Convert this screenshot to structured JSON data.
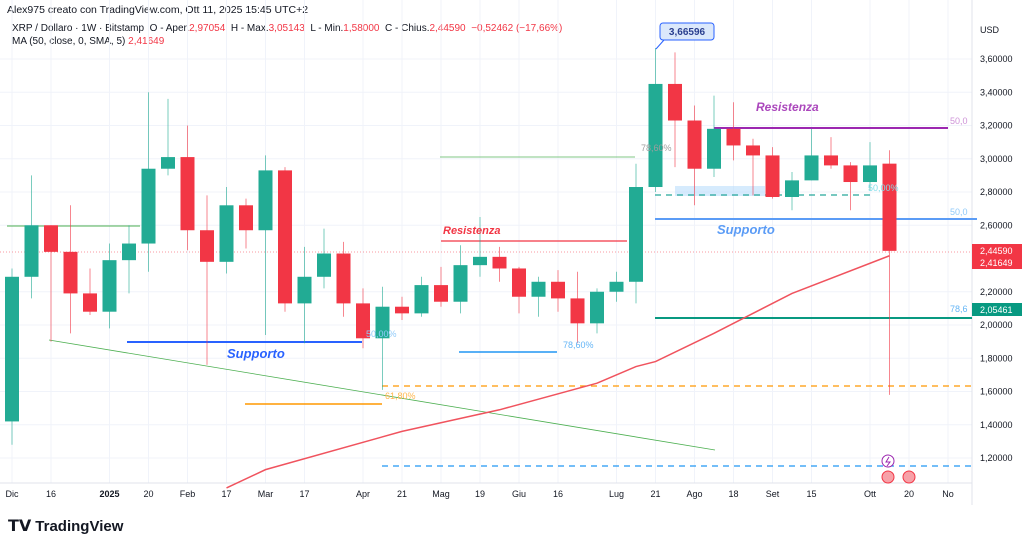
{
  "header": {
    "author": "Alex975 creato con TradingView.com, Ott 11, 2025 15:45 UTC+2",
    "symbol": "XRP / Dollaro · 1W · Bitstamp",
    "o_label": "O - Aper.",
    "o": "2,97054",
    "h_label": "H - Max.",
    "h": "3,05143",
    "l_label": "L - Min.",
    "l": "1,58000",
    "c_label": "C - Chius.",
    "c": "2,44590",
    "change": "−0,52462 (−17,66%)",
    "ma_label": "MA (50, close, 0, SMA, 5)",
    "ma": "2,41649"
  },
  "colors": {
    "up": "#22ab94",
    "down": "#f23645",
    "ma": "#f0535e"
  },
  "logo": "TradingView",
  "chart_data": {
    "type": "candlestick",
    "currency": "USD",
    "ylim": [
      1.02,
      3.72
    ],
    "yticks": [
      "3,60000",
      "3,40000",
      "3,20000",
      "3,00000",
      "2,80000",
      "2,60000",
      "2,20000",
      "2,00000",
      "1,80000",
      "1,60000",
      "1,40000",
      "1,20000"
    ],
    "ytick_values": [
      3.6,
      3.4,
      3.2,
      3.0,
      2.8,
      2.6,
      2.2,
      2.0,
      1.8,
      1.6,
      1.4,
      1.2
    ],
    "xticks": [
      {
        "i": 1,
        "t": "Dic"
      },
      {
        "i": 3,
        "t": "16"
      },
      {
        "i": 6,
        "t": "2025"
      },
      {
        "i": 8,
        "t": "20"
      },
      {
        "i": 10,
        "t": "Feb"
      },
      {
        "i": 12,
        "t": "17"
      },
      {
        "i": 14,
        "t": "Mar"
      },
      {
        "i": 16,
        "t": "17"
      },
      {
        "i": 19,
        "t": "Apr"
      },
      {
        "i": 21,
        "t": "21"
      },
      {
        "i": 23,
        "t": "Mag"
      },
      {
        "i": 25,
        "t": "19"
      },
      {
        "i": 27,
        "t": "Giu"
      },
      {
        "i": 29,
        "t": "16"
      },
      {
        "i": 32,
        "t": "Lug"
      },
      {
        "i": 34,
        "t": "21"
      },
      {
        "i": 36,
        "t": "Ago"
      },
      {
        "i": 38,
        "t": "18"
      },
      {
        "i": 40,
        "t": "Set"
      },
      {
        "i": 42,
        "t": "15"
      },
      {
        "i": 45,
        "t": "Ott"
      },
      {
        "i": 47,
        "t": "20"
      },
      {
        "i": 49,
        "t": "No"
      }
    ],
    "ohlc": [
      [
        1.42,
        2.34,
        1.28,
        2.29
      ],
      [
        2.29,
        2.9,
        2.16,
        2.6
      ],
      [
        2.6,
        2.6,
        1.9,
        2.44
      ],
      [
        2.44,
        2.72,
        1.95,
        2.19
      ],
      [
        2.19,
        2.34,
        2.06,
        2.08
      ],
      [
        2.08,
        2.49,
        1.98,
        2.39
      ],
      [
        2.39,
        2.6,
        2.19,
        2.49
      ],
      [
        2.49,
        3.4,
        2.32,
        2.94
      ],
      [
        2.94,
        3.36,
        2.9,
        3.01
      ],
      [
        3.01,
        3.2,
        2.45,
        2.57
      ],
      [
        2.57,
        2.78,
        1.76,
        2.38
      ],
      [
        2.38,
        2.83,
        2.31,
        2.72
      ],
      [
        2.72,
        2.76,
        2.46,
        2.57
      ],
      [
        2.57,
        3.02,
        1.94,
        2.93
      ],
      [
        2.93,
        2.95,
        2.08,
        2.13
      ],
      [
        2.13,
        2.47,
        1.89,
        2.29
      ],
      [
        2.29,
        2.58,
        2.22,
        2.43
      ],
      [
        2.43,
        2.5,
        2.05,
        2.13
      ],
      [
        2.13,
        2.22,
        1.86,
        1.92
      ],
      [
        1.92,
        2.23,
        1.61,
        2.11
      ],
      [
        2.11,
        2.17,
        2.03,
        2.07
      ],
      [
        2.07,
        2.29,
        2.05,
        2.24
      ],
      [
        2.24,
        2.35,
        2.11,
        2.14
      ],
      [
        2.14,
        2.48,
        2.07,
        2.36
      ],
      [
        2.36,
        2.65,
        2.29,
        2.41
      ],
      [
        2.41,
        2.47,
        2.26,
        2.34
      ],
      [
        2.34,
        2.35,
        2.07,
        2.17
      ],
      [
        2.17,
        2.29,
        2.05,
        2.26
      ],
      [
        2.26,
        2.33,
        2.08,
        2.16
      ],
      [
        2.16,
        2.32,
        1.89,
        2.01
      ],
      [
        2.01,
        2.22,
        1.95,
        2.2
      ],
      [
        2.2,
        2.32,
        2.14,
        2.26
      ],
      [
        2.26,
        2.97,
        2.13,
        2.83
      ],
      [
        2.83,
        3.66596,
        2.8,
        3.45
      ],
      [
        3.45,
        3.64,
        2.95,
        3.23
      ],
      [
        3.23,
        3.32,
        2.72,
        2.94
      ],
      [
        2.94,
        3.38,
        2.89,
        3.18
      ],
      [
        3.18,
        3.34,
        2.99,
        3.08
      ],
      [
        3.08,
        3.12,
        2.78,
        3.02
      ],
      [
        3.02,
        3.07,
        2.76,
        2.77
      ],
      [
        2.77,
        2.92,
        2.69,
        2.87
      ],
      [
        2.87,
        3.18,
        2.87,
        3.02
      ],
      [
        3.02,
        3.13,
        2.94,
        2.96
      ],
      [
        2.96,
        2.98,
        2.69,
        2.86
      ],
      [
        2.86,
        3.1,
        2.81,
        2.96
      ],
      [
        2.97054,
        3.05143,
        1.58,
        2.4459
      ]
    ],
    "ma50": [
      [
        11,
        1.02
      ],
      [
        13,
        1.13
      ],
      [
        20,
        1.36
      ],
      [
        25,
        1.49
      ],
      [
        30,
        1.65
      ],
      [
        32,
        1.75
      ],
      [
        33,
        1.78
      ],
      [
        36,
        1.95
      ],
      [
        40,
        2.19
      ],
      [
        45,
        2.41649
      ]
    ],
    "price_labels": {
      "last": "2,44590",
      "ma": "2,41649",
      "level": "2,05461",
      "high_callout": "3,66596"
    },
    "drawings": {
      "supporto": "Supporto",
      "resistenza": "Resistenza",
      "fib618": "61,80%",
      "fib50": "50,00%",
      "fib786": "78,60%",
      "fib50_short": "50,0",
      "fib786_short": "78,6"
    }
  }
}
